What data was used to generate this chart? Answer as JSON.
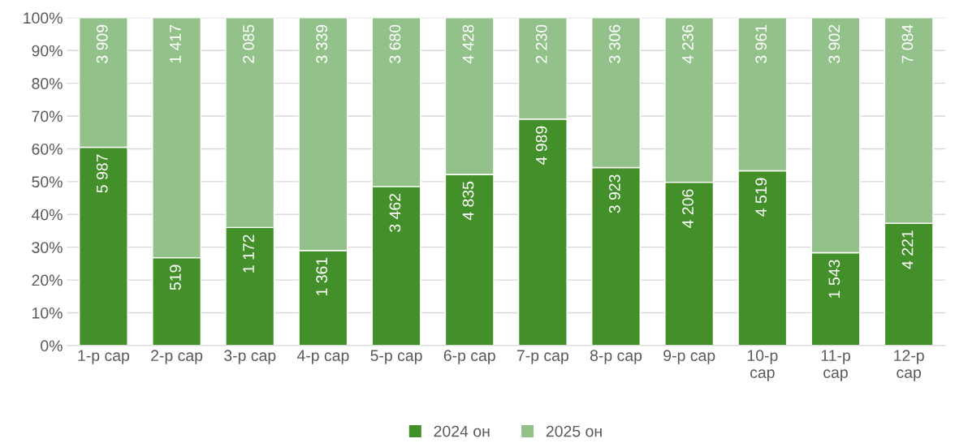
{
  "chart_data": {
    "type": "bar",
    "stacked": true,
    "categories": [
      "1-р сар",
      "2-р сар",
      "3-р сар",
      "4-р сар",
      "5-р сар",
      "6-р сар",
      "7-р сар",
      "8-р сар",
      "9-р сар",
      "10-р сар",
      "11-р сар",
      "12-р сар"
    ],
    "series": [
      {
        "name": "2024 он",
        "color": "#43902a",
        "values": [
          60.5,
          26.8,
          36.0,
          29.0,
          48.5,
          52.2,
          69.1,
          54.3,
          49.8,
          53.3,
          28.3,
          37.3
        ]
      },
      {
        "name": "2025 он",
        "color": "#93c18a",
        "values": [
          39.5,
          73.2,
          64.0,
          71.0,
          51.5,
          47.8,
          30.9,
          45.7,
          50.2,
          46.7,
          71.7,
          62.7
        ]
      }
    ],
    "annotations": [
      {
        "text": "5 987",
        "x": "1-р сар",
        "y": 60.5
      },
      {
        "text": "519",
        "x": "2-р сар",
        "y": 26.8
      },
      {
        "text": "1 172",
        "x": "3-р сар",
        "y": 36.0
      },
      {
        "text": "1 361",
        "x": "4-р сар",
        "y": 29.0
      },
      {
        "text": "3 462",
        "x": "5-р сар",
        "y": 48.5
      },
      {
        "text": "4 835",
        "x": "6-р сар",
        "y": 52.2
      },
      {
        "text": "4 989",
        "x": "7-р сар",
        "y": 69.1
      },
      {
        "text": "3 923",
        "x": "8-р сар",
        "y": 54.3
      },
      {
        "text": "4 206",
        "x": "9-р сар",
        "y": 49.8
      },
      {
        "text": "4 519",
        "x": "10-р сар",
        "y": 53.3
      },
      {
        "text": "1 543",
        "x": "11-р сар",
        "y": 28.3
      },
      {
        "text": "4 221",
        "x": "12-р сар",
        "y": 37.3
      },
      {
        "text": "3 909",
        "x": "1-р сар",
        "y": 100
      },
      {
        "text": "1 417",
        "x": "2-р сар",
        "y": 100
      },
      {
        "text": "2 085",
        "x": "3-р сар",
        "y": 100
      },
      {
        "text": "3 339",
        "x": "4-р сар",
        "y": 100
      },
      {
        "text": "3 680",
        "x": "5-р сар",
        "y": 100
      },
      {
        "text": "4 428",
        "x": "6-р сар",
        "y": 100
      },
      {
        "text": "2 230",
        "x": "7-р сар",
        "y": 100
      },
      {
        "text": "3 306",
        "x": "8-р сар",
        "y": 100
      },
      {
        "text": "4 236",
        "x": "9-р сар",
        "y": 100
      },
      {
        "text": "3 961",
        "x": "10-р сар",
        "y": 100
      },
      {
        "text": "3 902",
        "x": "11-р сар",
        "y": 100
      },
      {
        "text": "7 084",
        "x": "12-р сар",
        "y": 100
      }
    ],
    "ylim": [
      0,
      100
    ],
    "yticks": [
      {
        "value": 0,
        "label": "0%"
      },
      {
        "value": 10,
        "label": "10%"
      },
      {
        "value": 20,
        "label": "20%"
      },
      {
        "value": 30,
        "label": "30%"
      },
      {
        "value": 40,
        "label": "40%"
      },
      {
        "value": 50,
        "label": "50%"
      },
      {
        "value": 60,
        "label": "60%"
      },
      {
        "value": 70,
        "label": "70%"
      },
      {
        "value": 80,
        "label": "80%"
      },
      {
        "value": 90,
        "label": "90%"
      },
      {
        "value": 100,
        "label": "100%"
      }
    ],
    "grid": "y",
    "legend": "bottom"
  }
}
